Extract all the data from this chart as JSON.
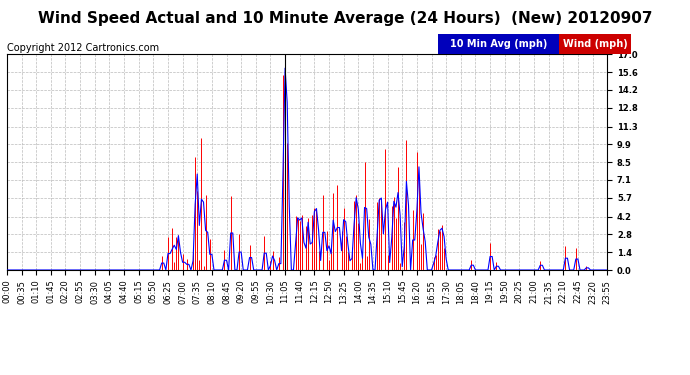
{
  "title": "Wind Speed Actual and 10 Minute Average (24 Hours)  (New) 20120907",
  "copyright": "Copyright 2012 Cartronics.com",
  "legend_blue_label": "10 Min Avg (mph)",
  "legend_red_label": "Wind (mph)",
  "yticks": [
    0.0,
    1.4,
    2.8,
    4.2,
    5.7,
    7.1,
    8.5,
    9.9,
    11.3,
    12.8,
    14.2,
    15.6,
    17.0
  ],
  "ymin": 0.0,
  "ymax": 17.0,
  "background_color": "#ffffff",
  "plot_bg_color": "#ffffff",
  "grid_color": "#bbbbbb",
  "title_fontsize": 11,
  "copyright_fontsize": 7,
  "tick_fontsize": 6,
  "legend_fontsize": 7,
  "num_points": 288,
  "minutes_per_point": 5,
  "tick_interval_minutes": 35
}
